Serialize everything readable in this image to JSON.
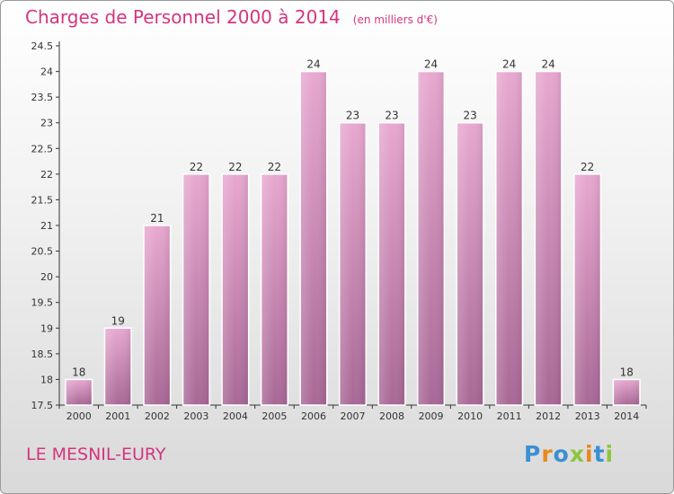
{
  "title": "Charges de Personnel 2000 à 2014",
  "subtitle": "(en milliers d'€)",
  "place_name": "LE MESNIL-EURY",
  "logo": {
    "text": "Proxiti",
    "letter_colors": [
      "#3b8fd4",
      "#e8891c",
      "#3b8fd4",
      "#8cc63f",
      "#e8891c",
      "#3b8fd4",
      "#8cc63f"
    ]
  },
  "colors": {
    "bar_top": "#e8a8d0",
    "bar_bottom": "#a86896",
    "title": "#d4357f",
    "axis": "#333333"
  },
  "chart_data": {
    "type": "bar",
    "title": "Charges de Personnel 2000 à 2014",
    "subtitle": "(en milliers d'€)",
    "xlabel": "",
    "ylabel": "",
    "categories": [
      "2000",
      "2001",
      "2002",
      "2003",
      "2004",
      "2005",
      "2006",
      "2007",
      "2008",
      "2009",
      "2010",
      "2011",
      "2012",
      "2013",
      "2014"
    ],
    "values": [
      18,
      19,
      21,
      22,
      22,
      22,
      24,
      23,
      23,
      24,
      23,
      24,
      24,
      22,
      18
    ],
    "data_labels": [
      "18",
      "19",
      "21",
      "22",
      "22",
      "22",
      "24",
      "23",
      "23",
      "24",
      "23",
      "24",
      "24",
      "22",
      "18"
    ],
    "ylim": [
      17.5,
      24.5
    ],
    "yticks": [
      17.5,
      18,
      18.5,
      19,
      19.5,
      20,
      20.5,
      21,
      21.5,
      22,
      22.5,
      23,
      23.5,
      24,
      24.5
    ],
    "ytick_labels": [
      "17.5",
      "18",
      "18.5",
      "19",
      "19.5",
      "20",
      "20.5",
      "21",
      "21.5",
      "22",
      "22.5",
      "23",
      "23.5",
      "24",
      "24.5"
    ],
    "grid": false,
    "legend": "none"
  }
}
